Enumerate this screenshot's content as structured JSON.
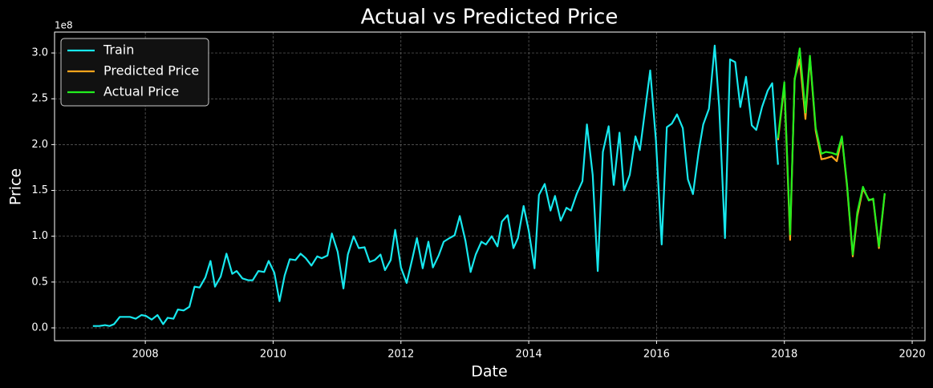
{
  "chart_data": {
    "type": "line",
    "title": "Actual vs Predicted Price",
    "x_label": "Date",
    "y_label": "Price",
    "y_offset_label": "1e8",
    "xlim": [
      2006.58,
      2020.2
    ],
    "xticks": [
      2008,
      2010,
      2012,
      2014,
      2016,
      2018,
      2020
    ],
    "ylim": [
      -0.14,
      3.228
    ],
    "yticks": [
      {
        "value": 0,
        "label": "0.0"
      },
      0.5,
      {
        "value": 1,
        "label": "1.0"
      },
      1.5,
      {
        "value": 2,
        "label": "2.0"
      },
      2.5,
      {
        "value": 3,
        "label": "3.0"
      }
    ],
    "grid": true,
    "legend": "upper left",
    "series": [
      {
        "name": "Train",
        "color": "#17e8ee",
        "x": [
          2007.18,
          2007.28,
          2007.37,
          2007.44,
          2007.51,
          2007.6,
          2007.69,
          2007.76,
          2007.85,
          2007.94,
          2008.01,
          2008.1,
          2008.19,
          2008.28,
          2008.35,
          2008.44,
          2008.51,
          2008.6,
          2008.69,
          2008.77,
          2008.85,
          2008.94,
          2009.02,
          2009.09,
          2009.18,
          2009.27,
          2009.36,
          2009.43,
          2009.52,
          2009.61,
          2009.68,
          2009.77,
          2009.86,
          2009.93,
          2010.02,
          2010.1,
          2010.18,
          2010.26,
          2010.35,
          2010.43,
          2010.51,
          2010.6,
          2010.69,
          2010.76,
          2010.85,
          2010.92,
          2011.01,
          2011.1,
          2011.17,
          2011.26,
          2011.34,
          2011.43,
          2011.51,
          2011.59,
          2011.68,
          2011.75,
          2011.84,
          2011.91,
          2012.0,
          2012.09,
          2012.18,
          2012.25,
          2012.34,
          2012.43,
          2012.5,
          2012.59,
          2012.67,
          2012.76,
          2012.84,
          2012.92,
          2013.01,
          2013.09,
          2013.17,
          2013.26,
          2013.33,
          2013.42,
          2013.51,
          2013.58,
          2013.67,
          2013.76,
          2013.83,
          2013.92,
          2014.0,
          2014.09,
          2014.16,
          2014.25,
          2014.34,
          2014.41,
          2014.5,
          2014.59,
          2014.66,
          2014.75,
          2014.84,
          2014.91,
          2015.0,
          2015.08,
          2015.16,
          2015.25,
          2015.33,
          2015.42,
          2015.49,
          2015.58,
          2015.67,
          2015.74,
          2015.83,
          2015.9,
          2015.99,
          2016.08,
          2016.16,
          2016.24,
          2016.32,
          2016.41,
          2016.49,
          2016.57,
          2016.66,
          2016.73,
          2016.82,
          2016.91,
          2016.98,
          2017.07,
          2017.15,
          2017.23,
          2017.31,
          2017.4,
          2017.49,
          2017.56,
          2017.65,
          2017.74,
          2017.81,
          2017.9
        ],
        "values": [
          0.02,
          0.02,
          0.03,
          0.02,
          0.04,
          0.12,
          0.12,
          0.12,
          0.1,
          0.14,
          0.13,
          0.09,
          0.14,
          0.04,
          0.11,
          0.1,
          0.2,
          0.19,
          0.23,
          0.45,
          0.44,
          0.55,
          0.73,
          0.45,
          0.56,
          0.81,
          0.59,
          0.62,
          0.54,
          0.52,
          0.52,
          0.62,
          0.61,
          0.73,
          0.6,
          0.29,
          0.57,
          0.75,
          0.74,
          0.81,
          0.76,
          0.68,
          0.78,
          0.76,
          0.79,
          1.03,
          0.83,
          0.43,
          0.8,
          1.0,
          0.87,
          0.88,
          0.72,
          0.74,
          0.8,
          0.63,
          0.74,
          1.07,
          0.66,
          0.49,
          0.76,
          0.98,
          0.65,
          0.94,
          0.66,
          0.79,
          0.94,
          0.98,
          1.01,
          1.22,
          0.95,
          0.61,
          0.8,
          0.94,
          0.91,
          1.0,
          0.89,
          1.16,
          1.23,
          0.87,
          0.98,
          1.33,
          1.06,
          0.65,
          1.45,
          1.57,
          1.28,
          1.44,
          1.17,
          1.31,
          1.28,
          1.46,
          1.6,
          2.22,
          1.67,
          0.62,
          1.92,
          2.2,
          1.56,
          2.13,
          1.5,
          1.67,
          2.09,
          1.94,
          2.43,
          2.81,
          2.05,
          0.91,
          2.19,
          2.23,
          2.33,
          2.18,
          1.62,
          1.46,
          1.93,
          2.22,
          2.39,
          3.08,
          2.41,
          0.98,
          2.93,
          2.9,
          2.41,
          2.74,
          2.21,
          2.16,
          2.41,
          2.59,
          2.67,
          1.78
        ]
      },
      {
        "name": "Predicted Price",
        "color": "#ffa51c",
        "x": [
          2017.9,
          2018.0,
          2018.09,
          2018.16,
          2018.24,
          2018.33,
          2018.4,
          2018.49,
          2018.58,
          2018.65,
          2018.74,
          2018.82,
          2018.9,
          2018.98,
          2019.07,
          2019.14,
          2019.23,
          2019.32,
          2019.39,
          2019.48,
          2019.57
        ],
        "values": [
          2.05,
          2.65,
          0.96,
          2.72,
          2.93,
          2.28,
          2.95,
          2.15,
          1.84,
          1.85,
          1.87,
          1.82,
          2.08,
          1.55,
          0.78,
          1.22,
          1.52,
          1.4,
          1.4,
          0.87,
          1.46
        ]
      },
      {
        "name": "Actual Price",
        "color": "#22ee1e",
        "x": [
          2017.9,
          2018.0,
          2018.09,
          2018.16,
          2018.24,
          2018.33,
          2018.4,
          2018.49,
          2018.58,
          2018.65,
          2018.74,
          2018.82,
          2018.9,
          2018.98,
          2019.07,
          2019.14,
          2019.23,
          2019.32,
          2019.39,
          2019.48,
          2019.57
        ],
        "values": [
          2.07,
          2.68,
          1.02,
          2.7,
          3.05,
          2.35,
          2.97,
          2.18,
          1.9,
          1.92,
          1.91,
          1.89,
          2.09,
          1.57,
          0.8,
          1.26,
          1.54,
          1.39,
          1.41,
          0.89,
          1.47
        ]
      }
    ]
  }
}
